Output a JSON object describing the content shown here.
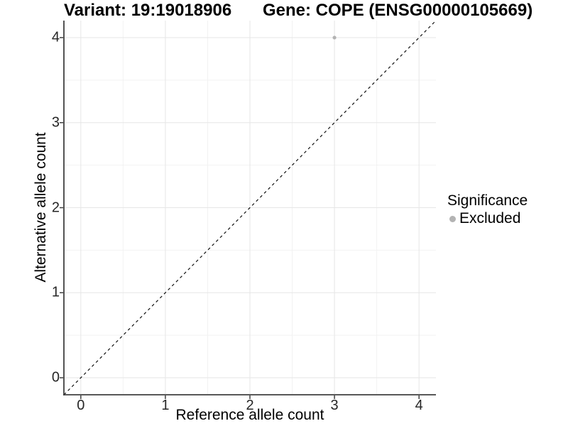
{
  "header": {
    "variant_title": "Variant: 19:19018906",
    "gene_title": "Gene: COPE (ENSG00000105669)"
  },
  "chart_data": {
    "type": "scatter",
    "xlabel": "Reference allele count",
    "ylabel": "Alternative allele count",
    "xlim": [
      -0.2,
      4.2
    ],
    "ylim": [
      -0.2,
      4.2
    ],
    "x_ticks": [
      0,
      1,
      2,
      3,
      4
    ],
    "x_minor_ticks": [
      0.5,
      1.5,
      2.5,
      3.5
    ],
    "y_ticks": [
      0,
      1,
      2,
      3,
      4
    ],
    "y_minor_ticks": [
      0.5,
      1.5,
      2.5,
      3.5
    ],
    "grid": "major+minor",
    "points": [
      {
        "x": 3,
        "y": 4,
        "significance": "Excluded"
      }
    ],
    "reference_line": {
      "type": "identity",
      "style": "dashed"
    },
    "legend": {
      "title": "Significance",
      "position": "right",
      "entries": [
        {
          "label": "Excluded",
          "color": "#b3b3b3"
        }
      ]
    }
  },
  "colors": {
    "point": "#b3b3b3",
    "grid_major": "#e6e6e6",
    "grid_minor": "#f2f2f2",
    "axis_line": "#404040",
    "tick_mark": "#404040",
    "dashed_line": "#111111",
    "tick_text": "#262626"
  }
}
